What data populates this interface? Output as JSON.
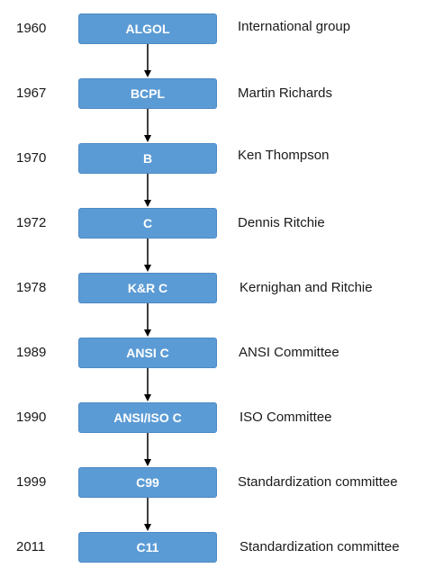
{
  "timeline": [
    {
      "year": "1960",
      "language": "ALGOL",
      "creator": "International group"
    },
    {
      "year": "1967",
      "language": "BCPL",
      "creator": "Martin Richards"
    },
    {
      "year": "1970",
      "language": "B",
      "creator": "Ken Thompson"
    },
    {
      "year": "1972",
      "language": "C",
      "creator": "Dennis Ritchie"
    },
    {
      "year": "1978",
      "language": "K&R C",
      "creator": "Kernighan and Ritchie"
    },
    {
      "year": "1989",
      "language": "ANSI C",
      "creator": "ANSI Committee"
    },
    {
      "year": "1990",
      "language": "ANSI/ISO C",
      "creator": "ISO Committee"
    },
    {
      "year": "1999",
      "language": "C99",
      "creator": "Standardization committee"
    },
    {
      "year": "2011",
      "language": "C11",
      "creator": "Standardization committee"
    }
  ],
  "colors": {
    "box_fill": "#5b9bd5",
    "box_text": "#ffffff",
    "arrow": "#000000",
    "label_text": "#1a1a1a"
  }
}
